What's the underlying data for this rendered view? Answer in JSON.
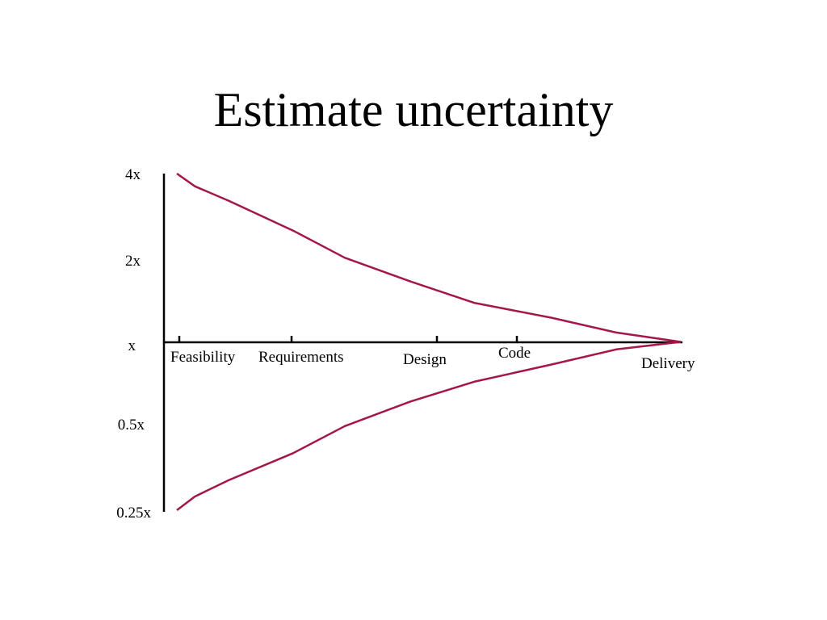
{
  "chart_data": {
    "type": "line",
    "title": "Estimate uncertainty",
    "y_scale": "log",
    "y_ticks": [
      "4x",
      "2x",
      "x",
      "0.5x",
      "0.25x"
    ],
    "y_tick_values": [
      4,
      2,
      1,
      0.5,
      0.25
    ],
    "ylim": [
      0.25,
      4
    ],
    "phases": [
      "Feasibility",
      "Requirements",
      "Design",
      "Code",
      "Delivery"
    ],
    "x": [
      0.05,
      0.12,
      0.25,
      0.5,
      0.7,
      0.95,
      1.2,
      1.5,
      1.75,
      2.0
    ],
    "series": [
      {
        "values": [
          4.0,
          3.6,
          3.2,
          2.5,
          2.0,
          1.65,
          1.38,
          1.22,
          1.08,
          1.0
        ],
        "color": "#a3174a"
      },
      {
        "values": [
          0.25,
          0.28,
          0.32,
          0.4,
          0.5,
          0.61,
          0.72,
          0.83,
          0.94,
          1.0
        ],
        "color": "#a3174a"
      }
    ],
    "grid": false,
    "legend": "none"
  }
}
